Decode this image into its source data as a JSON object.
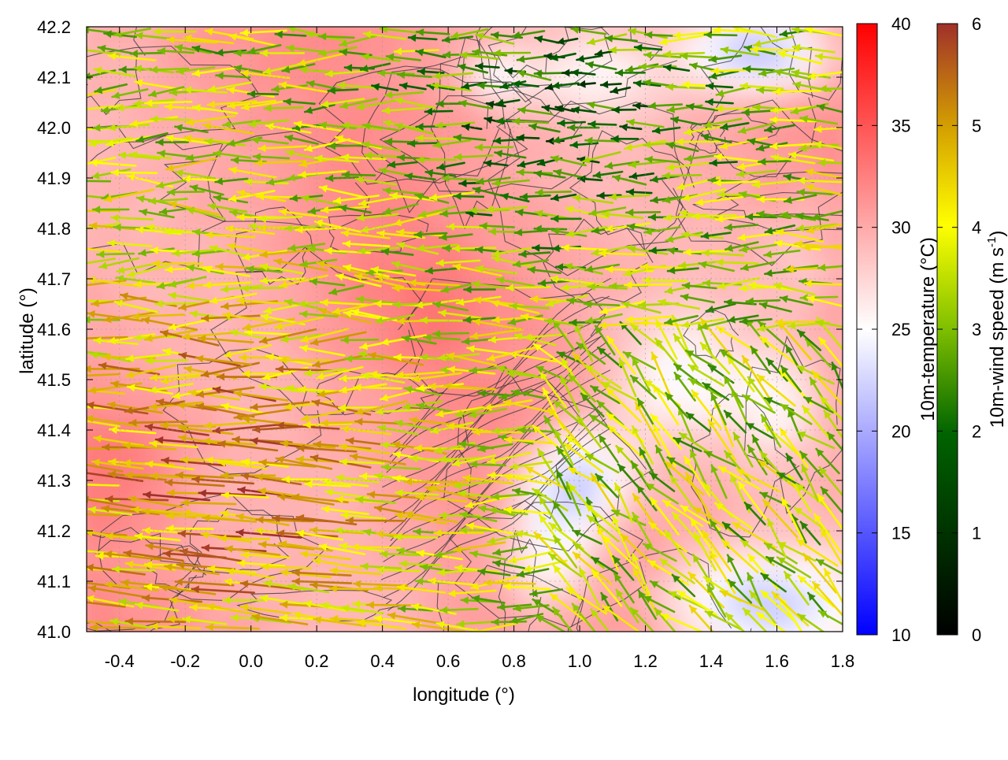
{
  "chart_data": {
    "type": "heatmap",
    "xlabel": "longitude (°)",
    "ylabel": "latitude (°)",
    "xlim": [
      -0.5,
      1.8
    ],
    "ylim": [
      41.0,
      42.2
    ],
    "x_ticks": [
      {
        "value": -0.4,
        "label": "-0.4"
      },
      {
        "value": -0.2,
        "label": "-0.2"
      },
      {
        "value": 0.0,
        "label": "0.0"
      },
      {
        "value": 0.2,
        "label": "0.2"
      },
      {
        "value": 0.4,
        "label": "0.4"
      },
      {
        "value": 0.6,
        "label": "0.6"
      },
      {
        "value": 0.8,
        "label": "0.8"
      },
      {
        "value": 1.0,
        "label": "1.0"
      },
      {
        "value": 1.2,
        "label": "1.2"
      },
      {
        "value": 1.4,
        "label": "1.4"
      },
      {
        "value": 1.6,
        "label": "1.6"
      },
      {
        "value": 1.8,
        "label": "1.8"
      }
    ],
    "y_ticks": [
      {
        "value": 41.0,
        "label": "41.0"
      },
      {
        "value": 41.1,
        "label": "41.1"
      },
      {
        "value": 41.2,
        "label": "41.2"
      },
      {
        "value": 41.3,
        "label": "41.3"
      },
      {
        "value": 41.4,
        "label": "41.4"
      },
      {
        "value": 41.5,
        "label": "41.5"
      },
      {
        "value": 41.6,
        "label": "41.6"
      },
      {
        "value": 41.7,
        "label": "41.7"
      },
      {
        "value": 41.8,
        "label": "41.8"
      },
      {
        "value": 41.9,
        "label": "41.9"
      },
      {
        "value": 42.0,
        "label": "42.0"
      },
      {
        "value": 42.1,
        "label": "42.1"
      },
      {
        "value": 42.2,
        "label": "42.2"
      }
    ],
    "grid": true,
    "temperature_colorbar": {
      "label": "10m-temperature (°C)",
      "range": [
        10,
        40
      ],
      "ticks": [
        {
          "value": 10,
          "label": "10"
        },
        {
          "value": 15,
          "label": "15"
        },
        {
          "value": 20,
          "label": "20"
        },
        {
          "value": 25,
          "label": "25"
        },
        {
          "value": 30,
          "label": "30"
        },
        {
          "value": 35,
          "label": "35"
        },
        {
          "value": 40,
          "label": "40"
        }
      ],
      "colors": [
        "#0000ff",
        "#ffffff",
        "#ff0000"
      ]
    },
    "wind_colorbar": {
      "label_main": "10m-wind speed (m s",
      "label_sup": "-1",
      "label_end": ")",
      "range": [
        0,
        6
      ],
      "ticks": [
        {
          "value": 0,
          "label": "0"
        },
        {
          "value": 1,
          "label": "1"
        },
        {
          "value": 2,
          "label": "2"
        },
        {
          "value": 3,
          "label": "3"
        },
        {
          "value": 4,
          "label": "4"
        },
        {
          "value": 5,
          "label": "5"
        },
        {
          "value": 6,
          "label": "6"
        }
      ],
      "colors": [
        "#000000",
        "#006400",
        "#7fbf00",
        "#ffff00",
        "#d4a000",
        "#a0302a"
      ]
    },
    "temperature_field": {
      "description_values_degC": [
        {
          "lon": -0.4,
          "lat": 41.3,
          "temp": 32
        },
        {
          "lon": 0.5,
          "lat": 41.6,
          "temp": 31
        },
        {
          "lon": 1.0,
          "lat": 41.3,
          "temp": 21
        },
        {
          "lon": 1.5,
          "lat": 41.05,
          "temp": 22
        },
        {
          "lon": 1.55,
          "lat": 42.18,
          "temp": 19
        },
        {
          "lon": 1.5,
          "lat": 41.8,
          "temp": 29
        }
      ]
    }
  }
}
